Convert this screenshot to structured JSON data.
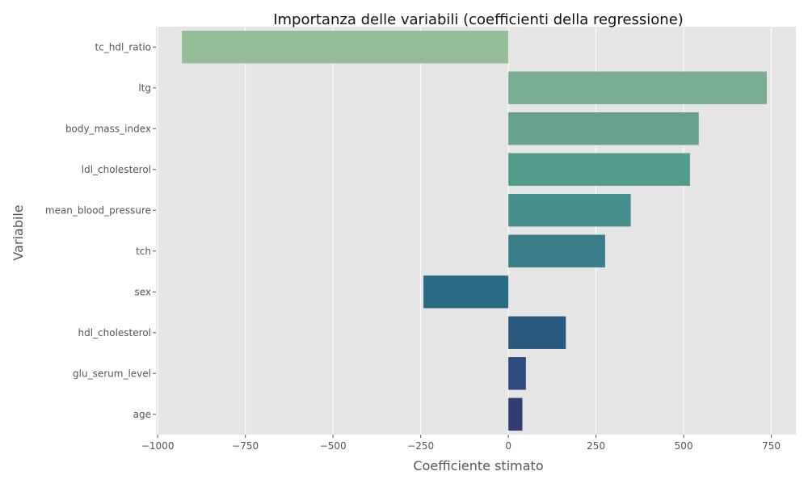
{
  "chart_data": {
    "type": "bar",
    "orientation": "horizontal",
    "title": "Importanza delle variabili (coefficienti della regressione)",
    "xlabel": "Coefficiente stimato",
    "ylabel": "Variabile",
    "xlim": [
      -1005,
      820
    ],
    "xticks": [
      -1000,
      -750,
      -500,
      -250,
      0,
      250,
      500,
      750
    ],
    "xtick_labels": [
      "−1000",
      "−750",
      "−500",
      "−250",
      "0",
      "250",
      "500",
      "750"
    ],
    "categories": [
      "tc_hdl_ratio",
      "ltg",
      "body_mass_index",
      "ldl_cholesterol",
      "mean_blood_pressure",
      "tch",
      "sex",
      "hdl_cholesterol",
      "glu_serum_level",
      "age"
    ],
    "values": [
      -931,
      737,
      543,
      518,
      349,
      276,
      -242,
      164,
      50,
      40
    ],
    "colors": [
      "#94bd98",
      "#7aad92",
      "#66a28e",
      "#559b8c",
      "#478d8c",
      "#3a7c87",
      "#2b6a83",
      "#29587f",
      "#2e4b7b",
      "#323e72"
    ],
    "grid": true,
    "legend": "none",
    "background": "#e5e5e5"
  }
}
